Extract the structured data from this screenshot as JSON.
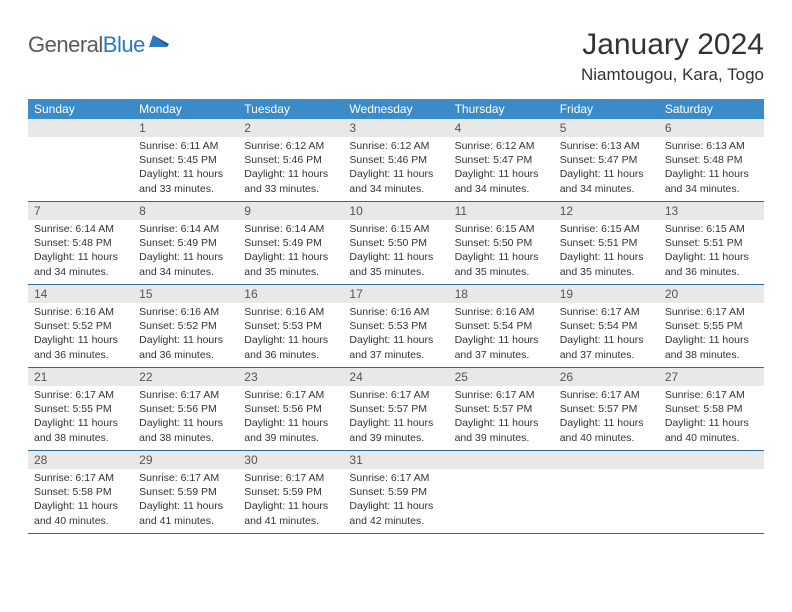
{
  "logo": {
    "part1": "General",
    "part2": "Blue"
  },
  "title": "January 2024",
  "location": "Niamtougou, Kara, Togo",
  "colors": {
    "header_bg": "#3b8bc8",
    "daynum_bg": "#e8e8e8",
    "row_border": "#2a6aa0",
    "text": "#333333",
    "logo_gray": "#5a5a5a",
    "logo_blue": "#2a7abf"
  },
  "weekdays": [
    "Sunday",
    "Monday",
    "Tuesday",
    "Wednesday",
    "Thursday",
    "Friday",
    "Saturday"
  ],
  "weeks": [
    [
      null,
      {
        "n": "1",
        "sr": "Sunrise: 6:11 AM",
        "ss": "Sunset: 5:45 PM",
        "dl": "Daylight: 11 hours and 33 minutes."
      },
      {
        "n": "2",
        "sr": "Sunrise: 6:12 AM",
        "ss": "Sunset: 5:46 PM",
        "dl": "Daylight: 11 hours and 33 minutes."
      },
      {
        "n": "3",
        "sr": "Sunrise: 6:12 AM",
        "ss": "Sunset: 5:46 PM",
        "dl": "Daylight: 11 hours and 34 minutes."
      },
      {
        "n": "4",
        "sr": "Sunrise: 6:12 AM",
        "ss": "Sunset: 5:47 PM",
        "dl": "Daylight: 11 hours and 34 minutes."
      },
      {
        "n": "5",
        "sr": "Sunrise: 6:13 AM",
        "ss": "Sunset: 5:47 PM",
        "dl": "Daylight: 11 hours and 34 minutes."
      },
      {
        "n": "6",
        "sr": "Sunrise: 6:13 AM",
        "ss": "Sunset: 5:48 PM",
        "dl": "Daylight: 11 hours and 34 minutes."
      }
    ],
    [
      {
        "n": "7",
        "sr": "Sunrise: 6:14 AM",
        "ss": "Sunset: 5:48 PM",
        "dl": "Daylight: 11 hours and 34 minutes."
      },
      {
        "n": "8",
        "sr": "Sunrise: 6:14 AM",
        "ss": "Sunset: 5:49 PM",
        "dl": "Daylight: 11 hours and 34 minutes."
      },
      {
        "n": "9",
        "sr": "Sunrise: 6:14 AM",
        "ss": "Sunset: 5:49 PM",
        "dl": "Daylight: 11 hours and 35 minutes."
      },
      {
        "n": "10",
        "sr": "Sunrise: 6:15 AM",
        "ss": "Sunset: 5:50 PM",
        "dl": "Daylight: 11 hours and 35 minutes."
      },
      {
        "n": "11",
        "sr": "Sunrise: 6:15 AM",
        "ss": "Sunset: 5:50 PM",
        "dl": "Daylight: 11 hours and 35 minutes."
      },
      {
        "n": "12",
        "sr": "Sunrise: 6:15 AM",
        "ss": "Sunset: 5:51 PM",
        "dl": "Daylight: 11 hours and 35 minutes."
      },
      {
        "n": "13",
        "sr": "Sunrise: 6:15 AM",
        "ss": "Sunset: 5:51 PM",
        "dl": "Daylight: 11 hours and 36 minutes."
      }
    ],
    [
      {
        "n": "14",
        "sr": "Sunrise: 6:16 AM",
        "ss": "Sunset: 5:52 PM",
        "dl": "Daylight: 11 hours and 36 minutes."
      },
      {
        "n": "15",
        "sr": "Sunrise: 6:16 AM",
        "ss": "Sunset: 5:52 PM",
        "dl": "Daylight: 11 hours and 36 minutes."
      },
      {
        "n": "16",
        "sr": "Sunrise: 6:16 AM",
        "ss": "Sunset: 5:53 PM",
        "dl": "Daylight: 11 hours and 36 minutes."
      },
      {
        "n": "17",
        "sr": "Sunrise: 6:16 AM",
        "ss": "Sunset: 5:53 PM",
        "dl": "Daylight: 11 hours and 37 minutes."
      },
      {
        "n": "18",
        "sr": "Sunrise: 6:16 AM",
        "ss": "Sunset: 5:54 PM",
        "dl": "Daylight: 11 hours and 37 minutes."
      },
      {
        "n": "19",
        "sr": "Sunrise: 6:17 AM",
        "ss": "Sunset: 5:54 PM",
        "dl": "Daylight: 11 hours and 37 minutes."
      },
      {
        "n": "20",
        "sr": "Sunrise: 6:17 AM",
        "ss": "Sunset: 5:55 PM",
        "dl": "Daylight: 11 hours and 38 minutes."
      }
    ],
    [
      {
        "n": "21",
        "sr": "Sunrise: 6:17 AM",
        "ss": "Sunset: 5:55 PM",
        "dl": "Daylight: 11 hours and 38 minutes."
      },
      {
        "n": "22",
        "sr": "Sunrise: 6:17 AM",
        "ss": "Sunset: 5:56 PM",
        "dl": "Daylight: 11 hours and 38 minutes."
      },
      {
        "n": "23",
        "sr": "Sunrise: 6:17 AM",
        "ss": "Sunset: 5:56 PM",
        "dl": "Daylight: 11 hours and 39 minutes."
      },
      {
        "n": "24",
        "sr": "Sunrise: 6:17 AM",
        "ss": "Sunset: 5:57 PM",
        "dl": "Daylight: 11 hours and 39 minutes."
      },
      {
        "n": "25",
        "sr": "Sunrise: 6:17 AM",
        "ss": "Sunset: 5:57 PM",
        "dl": "Daylight: 11 hours and 39 minutes."
      },
      {
        "n": "26",
        "sr": "Sunrise: 6:17 AM",
        "ss": "Sunset: 5:57 PM",
        "dl": "Daylight: 11 hours and 40 minutes."
      },
      {
        "n": "27",
        "sr": "Sunrise: 6:17 AM",
        "ss": "Sunset: 5:58 PM",
        "dl": "Daylight: 11 hours and 40 minutes."
      }
    ],
    [
      {
        "n": "28",
        "sr": "Sunrise: 6:17 AM",
        "ss": "Sunset: 5:58 PM",
        "dl": "Daylight: 11 hours and 40 minutes."
      },
      {
        "n": "29",
        "sr": "Sunrise: 6:17 AM",
        "ss": "Sunset: 5:59 PM",
        "dl": "Daylight: 11 hours and 41 minutes."
      },
      {
        "n": "30",
        "sr": "Sunrise: 6:17 AM",
        "ss": "Sunset: 5:59 PM",
        "dl": "Daylight: 11 hours and 41 minutes."
      },
      {
        "n": "31",
        "sr": "Sunrise: 6:17 AM",
        "ss": "Sunset: 5:59 PM",
        "dl": "Daylight: 11 hours and 42 minutes."
      },
      null,
      null,
      null
    ]
  ]
}
